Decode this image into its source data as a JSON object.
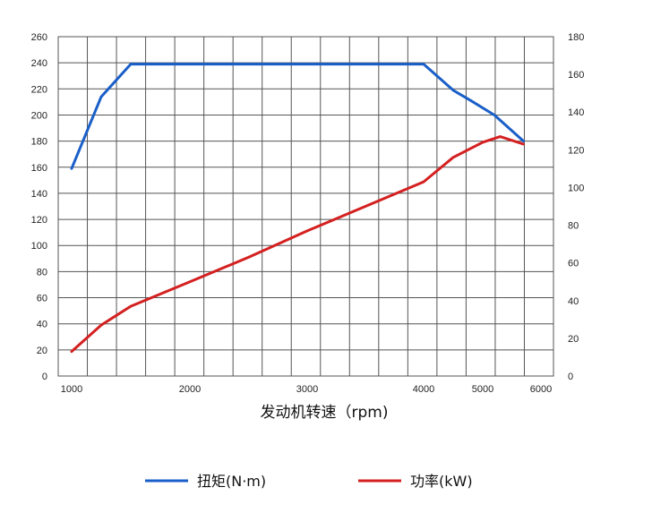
{
  "chart_data": {
    "type": "line",
    "xlabel": "发动机转速（rpm)",
    "x_ticks": [
      1000,
      2000,
      3000,
      4000,
      5000,
      6000
    ],
    "y_left_ticks": [
      0,
      20,
      40,
      60,
      80,
      100,
      120,
      140,
      160,
      180,
      200,
      220,
      240,
      260
    ],
    "y_right_ticks": [
      0,
      20,
      40,
      60,
      80,
      100,
      120,
      140,
      160,
      180
    ],
    "y_left_range": [
      0,
      260
    ],
    "y_right_range": [
      0,
      180
    ],
    "grid": true,
    "legend_position": "bottom",
    "series": [
      {
        "name": "扭矩(N·m)",
        "axis": "left",
        "color": "#1a5fc8",
        "points": [
          [
            1000,
            159
          ],
          [
            1250,
            214
          ],
          [
            1500,
            239
          ],
          [
            2000,
            239
          ],
          [
            3000,
            239
          ],
          [
            4000,
            239
          ],
          [
            4500,
            219
          ],
          [
            4800,
            211
          ],
          [
            5200,
            200
          ],
          [
            5700,
            180
          ]
        ],
        "x_pixels_note": ""
      },
      {
        "name": "功率(kW)",
        "axis": "right",
        "color": "#d42020",
        "points": [
          [
            1000,
            13
          ],
          [
            1250,
            27
          ],
          [
            1500,
            37
          ],
          [
            2000,
            50
          ],
          [
            2500,
            63
          ],
          [
            3000,
            77
          ],
          [
            3500,
            90
          ],
          [
            4000,
            103
          ],
          [
            4500,
            116
          ],
          [
            5000,
            124
          ],
          [
            5300,
            127
          ],
          [
            5700,
            123
          ]
        ]
      }
    ]
  }
}
